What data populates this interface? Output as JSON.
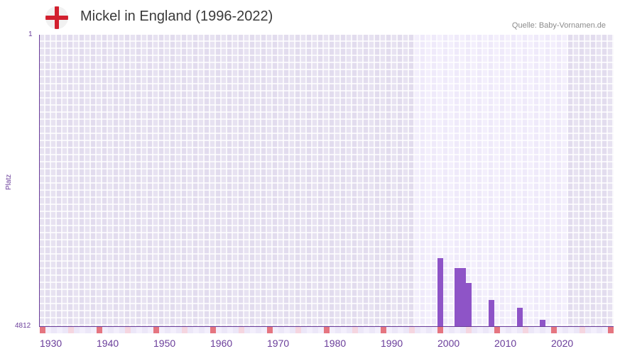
{
  "header": {
    "title": "Mickel in England (1996-2022)",
    "source": "Quelle: Baby-Vornamen.de",
    "flag_icon": "england-flag-icon"
  },
  "colors": {
    "bar": "#8e54c7",
    "axis": "#6a3d9a",
    "bg_outside_range": "#e4dff0",
    "bg_in_range": "#efeafa",
    "decade_marker": "#e57580",
    "half_decade_marker": "#f5d6e0",
    "minor_marker": "#efeafa"
  },
  "chart_data": {
    "type": "bar",
    "title": "Mickel in England (1996-2022)",
    "xlabel": "",
    "ylabel": "Platz",
    "y_inverted": true,
    "ylim": [
      1,
      4812
    ],
    "xlim": [
      1930,
      2030
    ],
    "data_range": [
      1996,
      2022
    ],
    "yticks": [
      "1",
      "4812"
    ],
    "xticks": [
      "1930",
      "1940",
      "1950",
      "1960",
      "1970",
      "1980",
      "1990",
      "2000",
      "2010",
      "2020"
    ],
    "grid": true,
    "legend": null,
    "categories": [
      "2000",
      "2003",
      "2004",
      "2005",
      "2009",
      "2014",
      "2018"
    ],
    "values": [
      3688,
      3852,
      3852,
      4098,
      4379,
      4508,
      4707
    ],
    "series": [
      {
        "name": "Platz",
        "x": [
          2000,
          2003,
          2004,
          2005,
          2009,
          2014,
          2018
        ],
        "values": [
          3688,
          3852,
          3852,
          4098,
          4379,
          4508,
          4707
        ]
      }
    ]
  },
  "axis": {
    "y_top_label": "1",
    "y_bottom_label": "4812",
    "y_title": "Platz",
    "x_labels": [
      "1930",
      "1940",
      "1950",
      "1960",
      "1970",
      "1980",
      "1990",
      "2000",
      "2010",
      "2020"
    ]
  }
}
